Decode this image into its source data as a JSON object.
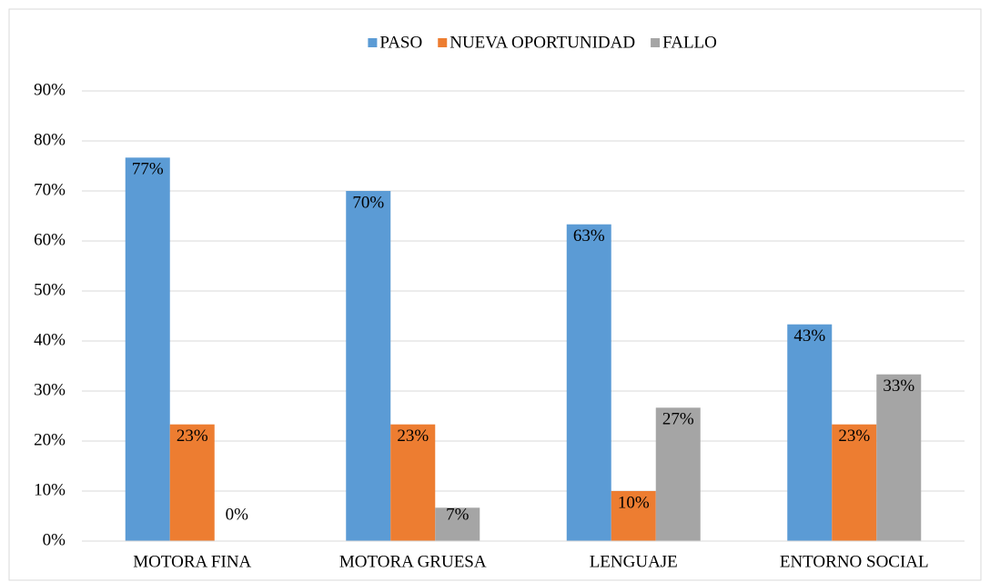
{
  "chart_data": {
    "type": "bar",
    "categories": [
      "MOTORA FINA",
      "MOTORA GRUESA",
      "LENGUAJE",
      "ENTORNO SOCIAL"
    ],
    "series": [
      {
        "name": "PASO",
        "color": "#5b9bd5",
        "values": [
          76.67,
          70,
          63.33,
          43.33
        ],
        "value_labels": [
          "77%",
          "70%",
          "63%",
          "43%"
        ]
      },
      {
        "name": "NUEVA OPORTUNIDAD",
        "color": "#ed7d31",
        "values": [
          23.33,
          23.33,
          10,
          23.33
        ],
        "value_labels": [
          "23%",
          "23%",
          "10%",
          "23%"
        ]
      },
      {
        "name": "FALLO",
        "color": "#a5a5a5",
        "values": [
          0,
          6.67,
          26.67,
          33.33
        ],
        "value_labels": [
          "0%",
          "7%",
          "27%",
          "33%"
        ]
      }
    ],
    "ylim": [
      0,
      90
    ],
    "yticks": [
      {
        "value": 0,
        "label": "0%"
      },
      {
        "value": 10,
        "label": "10%"
      },
      {
        "value": 20,
        "label": "20%"
      },
      {
        "value": 30,
        "label": "30%"
      },
      {
        "value": 40,
        "label": "40%"
      },
      {
        "value": 50,
        "label": "50%"
      },
      {
        "value": 60,
        "label": "60%"
      },
      {
        "value": 70,
        "label": "70%"
      },
      {
        "value": 80,
        "label": "80%"
      },
      {
        "value": 90,
        "label": "90%"
      }
    ],
    "grid": true,
    "legend": "top"
  }
}
